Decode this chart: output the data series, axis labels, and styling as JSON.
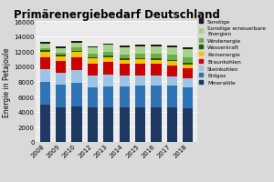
{
  "title": "Primärenergiebedarf Deutschland",
  "ylabel": "Energie in Petajoule",
  "years": [
    "2008",
    "2009",
    "2010",
    "2012",
    "2013",
    "2014",
    "2015",
    "2016",
    "2017",
    "2018"
  ],
  "ylim": [
    0,
    16000
  ],
  "yticks": [
    0,
    2000,
    4000,
    6000,
    8000,
    10000,
    12000,
    14000,
    16000
  ],
  "categories": [
    "Mineralöle",
    "Erdgas",
    "Steinkohlen",
    "Braunkohlen",
    "Kernenergie",
    "Wasserkraft",
    "Windenergie",
    "Sonstige erneuerbare Energien",
    "Sonstige"
  ],
  "colors": [
    "#1f3864",
    "#2e75b6",
    "#9dc3e6",
    "#cc0000",
    "#ffc000",
    "#1f5c00",
    "#70ad47",
    "#a9d18e",
    "#1a1a1a"
  ],
  "data": {
    "Mineralöle": [
      4900,
      4600,
      4650,
      4600,
      4600,
      4600,
      4600,
      4600,
      4600,
      4400
    ],
    "Erdgas": [
      3050,
      3000,
      3200,
      2650,
      2700,
      2750,
      2800,
      2850,
      2900,
      2800
    ],
    "Steinkohlen": [
      1700,
      1500,
      1700,
      1500,
      1650,
      1400,
      1400,
      1350,
      1200,
      1200
    ],
    "Braunkohlen": [
      1600,
      1600,
      1650,
      1650,
      1650,
      1550,
      1550,
      1500,
      1450,
      1350
    ],
    "Kernenergie": [
      700,
      650,
      700,
      650,
      650,
      550,
      550,
      550,
      500,
      500
    ],
    "Wasserkraft": [
      180,
      180,
      180,
      180,
      180,
      180,
      180,
      180,
      180,
      180
    ],
    "Windenergie": [
      300,
      280,
      380,
      480,
      520,
      580,
      620,
      650,
      700,
      800
    ],
    "Sonstige erneuerbare Energien": [
      580,
      580,
      680,
      780,
      880,
      900,
      940,
      980,
      1020,
      1050
    ],
    "Sonstige": [
      190,
      190,
      190,
      190,
      190,
      190,
      190,
      190,
      190,
      190
    ]
  },
  "background_color": "#d9d9d9",
  "plot_bg_color": "#ebebeb",
  "title_fontsize": 8.5,
  "axis_fontsize": 5.5,
  "tick_fontsize": 5,
  "legend_fontsize": 4.2
}
